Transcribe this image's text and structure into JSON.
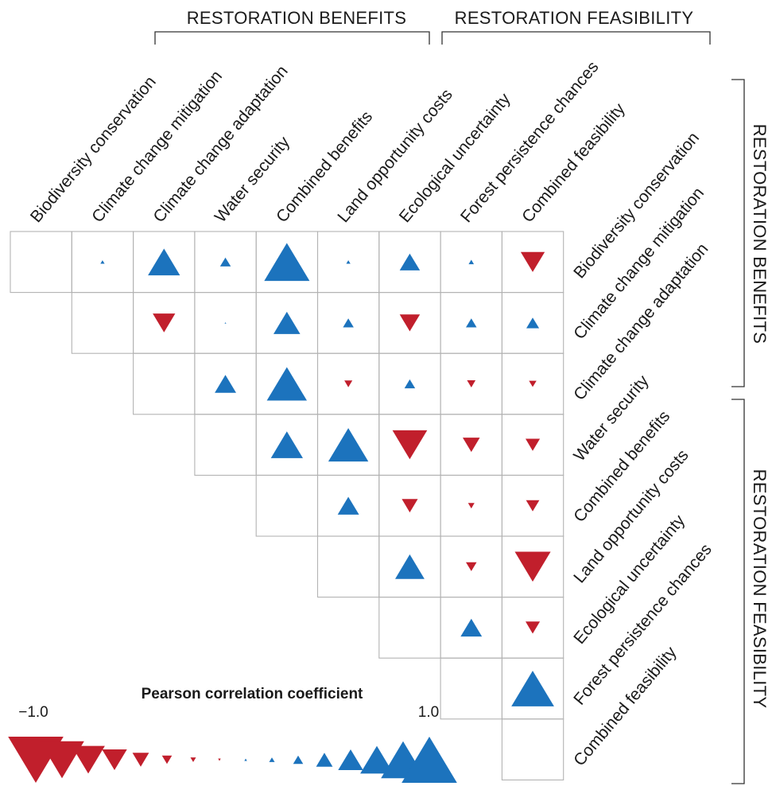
{
  "colors": {
    "positive": "#1c73bd",
    "negative": "#c11f2c",
    "grid": "#b3b3b3",
    "bracket": "#333333"
  },
  "chart_data": {
    "type": "heatmap",
    "mark": "triangle (up = positive, down = negative, size proportional to |r|)",
    "variables": [
      "Biodiversity conservation",
      "Climate change mitigation",
      "Climate change adaptation",
      "Water security",
      "Combined benefits",
      "Land opportunity costs",
      "Ecological uncertainty",
      "Forest persistence chances",
      "Combined feasibility"
    ],
    "groups": [
      {
        "label": "RESTORATION BENEFITS",
        "variables": [
          0,
          1,
          2,
          3,
          4
        ]
      },
      {
        "label": "RESTORATION FEASIBILITY",
        "variables": [
          5,
          6,
          7,
          8
        ]
      }
    ],
    "matrix": [
      [
        null,
        0.08,
        0.6,
        0.2,
        0.85,
        0.08,
        0.38,
        0.1,
        -0.45
      ],
      [
        null,
        null,
        -0.42,
        0.03,
        0.5,
        0.2,
        -0.38,
        0.2,
        0.24
      ],
      [
        null,
        null,
        null,
        0.4,
        0.75,
        -0.15,
        0.2,
        -0.16,
        -0.14
      ],
      [
        null,
        null,
        null,
        null,
        0.6,
        0.75,
        -0.65,
        -0.32,
        -0.27
      ],
      [
        null,
        null,
        null,
        null,
        null,
        0.4,
        -0.3,
        -0.12,
        -0.25
      ],
      [
        null,
        null,
        null,
        null,
        null,
        null,
        0.55,
        -0.2,
        -0.67
      ],
      [
        null,
        null,
        null,
        null,
        null,
        null,
        null,
        0.4,
        -0.27
      ],
      [
        null,
        null,
        null,
        null,
        null,
        null,
        null,
        null,
        0.8
      ],
      [
        null,
        null,
        null,
        null,
        null,
        null,
        null,
        null,
        null
      ]
    ],
    "legend": {
      "title": "Pearson correlation coefficient",
      "min_label": "−1.0",
      "max_label": "1.0",
      "steps": [
        -1.0,
        -0.8,
        -0.6,
        -0.45,
        -0.3,
        -0.18,
        -0.1,
        -0.05,
        0.05,
        0.1,
        0.18,
        0.3,
        0.45,
        0.6,
        0.8,
        1.0
      ]
    }
  }
}
